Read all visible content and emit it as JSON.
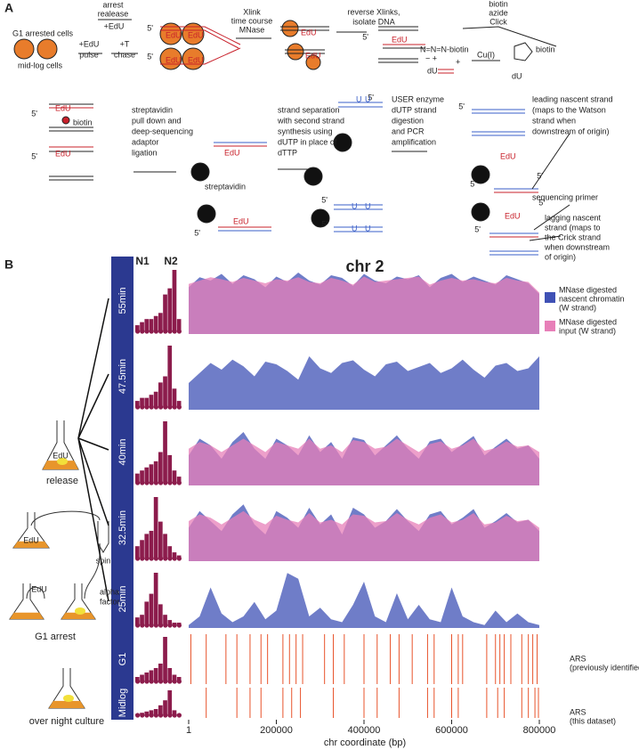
{
  "panel_a": {
    "label": "A",
    "g1_cells": "G1 arrested cells",
    "midlog_cells": "mid-log cells",
    "arrest": [
      "arrest",
      "realease"
    ],
    "edu": "+EdU",
    "pulse": [
      "+EdU",
      "pulse"
    ],
    "chase": [
      "+T",
      "chase"
    ],
    "five": "5'",
    "edu_tag": "EdU",
    "xlink": [
      "Xlink",
      "time course",
      "MNase"
    ],
    "reverse": [
      "reverse Xlinks,",
      "isolate DNA"
    ],
    "click": [
      "biotin",
      "azide",
      "Click"
    ],
    "azide": "N=N=N-biotin",
    "charges": "−  +",
    "du": "dU",
    "plus": "+",
    "cu": "Cu(I)",
    "biotin": "biotin",
    "pulldown": [
      "streptavidin",
      "pull down and",
      "deep-sequencing",
      "adaptor",
      "ligation"
    ],
    "streptavidin": "streptavidin",
    "separation": [
      "strand separation",
      "with second strand",
      "synthesis using",
      "dUTP in place of",
      "dTTP"
    ],
    "u": "U",
    "user": [
      "USER enzyme",
      "dUTP strand",
      "digestion",
      "and PCR",
      "amplification"
    ],
    "leading": [
      "leading nascent strand",
      "(maps to the Watson",
      "strand when",
      "downstream of origin)"
    ],
    "primer": "sequencing primer",
    "lagging": [
      "lagging nascent",
      "strand (maps to",
      "the Crick strand",
      "when downstream",
      " of origin)"
    ]
  },
  "panel_b": {
    "label": "B",
    "title": "chr 2",
    "n1": "N1",
    "n2": "N2",
    "left": {
      "edu": "EdU",
      "release": "release",
      "spin": "spin",
      "alpha": [
        "alpha",
        "factor"
      ],
      "g1_arrest": "G1 arrest",
      "overnight": "over night culture"
    },
    "legend": {
      "nascent": [
        "MNase digested",
        "nascent chromatin",
        "(W strand)"
      ],
      "input": [
        "MNase digested",
        "input (W strand)"
      ],
      "ars_g1": [
        "ARS",
        "(previously identified)"
      ],
      "ars_midlog": [
        "ARS",
        "(this dataset)"
      ]
    },
    "colors": {
      "nascent": "#3f51b5",
      "input": "#e77fb8",
      "ars": "#e8532b",
      "hist": "#8c1c4c",
      "bar": "#2b3990"
    },
    "xlabel": "chr coordinate (bp)",
    "xlim": [
      1,
      800000
    ],
    "xticks": [
      1,
      200000,
      400000,
      600000,
      800000
    ],
    "x": [
      1,
      25000,
      50000,
      75000,
      100000,
      125000,
      150000,
      175000,
      200000,
      225000,
      250000,
      275000,
      300000,
      325000,
      350000,
      375000,
      400000,
      425000,
      450000,
      475000,
      500000,
      525000,
      550000,
      575000,
      600000,
      625000,
      650000,
      675000,
      700000,
      725000,
      750000,
      775000,
      800000
    ],
    "rows": [
      {
        "label": "55min",
        "hist": [
          10,
          15,
          20,
          20,
          25,
          30,
          60,
          70,
          100,
          20
        ],
        "nascent": [
          70,
          85,
          80,
          90,
          75,
          88,
          82,
          70,
          86,
          78,
          92,
          80,
          74,
          88,
          84,
          72,
          90,
          80,
          76,
          86,
          82,
          88,
          70,
          84,
          90,
          78,
          86,
          80,
          74,
          88,
          82,
          76,
          60
        ],
        "input": [
          75,
          80,
          85,
          82,
          78,
          84,
          80,
          76,
          82,
          80,
          85,
          78,
          76,
          84,
          80,
          74,
          86,
          78,
          80,
          82,
          84,
          86,
          74,
          80,
          84,
          80,
          82,
          78,
          76,
          84,
          80,
          78,
          62
        ]
      },
      {
        "label": "47.5min",
        "hist": [
          10,
          15,
          15,
          20,
          25,
          40,
          50,
          100,
          30,
          10
        ],
        "nascent": [
          40,
          55,
          70,
          60,
          75,
          65,
          50,
          72,
          68,
          58,
          45,
          80,
          62,
          55,
          70,
          74,
          60,
          50,
          68,
          72,
          58,
          64,
          70,
          55,
          62,
          75,
          60,
          48,
          66,
          70,
          58,
          62,
          80
        ]
      },
      {
        "label": "40min",
        "hist": [
          15,
          20,
          25,
          30,
          35,
          50,
          100,
          45,
          20,
          10
        ],
        "nascent": [
          45,
          70,
          60,
          40,
          65,
          80,
          55,
          40,
          70,
          60,
          45,
          75,
          50,
          65,
          40,
          72,
          68,
          45,
          60,
          75,
          55,
          40,
          66,
          70,
          50,
          62,
          74,
          45,
          58,
          70,
          55,
          60,
          40
        ],
        "input": [
          55,
          65,
          60,
          50,
          60,
          70,
          60,
          50,
          65,
          60,
          55,
          70,
          55,
          60,
          50,
          68,
          65,
          55,
          58,
          70,
          60,
          50,
          62,
          66,
          55,
          60,
          70,
          52,
          56,
          66,
          58,
          60,
          50
        ]
      },
      {
        "label": "32.5min",
        "hist": [
          20,
          30,
          40,
          45,
          100,
          60,
          40,
          20,
          10,
          5
        ],
        "nascent": [
          50,
          75,
          60,
          45,
          70,
          85,
          55,
          40,
          75,
          65,
          50,
          80,
          55,
          70,
          40,
          80,
          70,
          50,
          60,
          78,
          60,
          45,
          70,
          75,
          55,
          65,
          78,
          50,
          60,
          72,
          58,
          62,
          45
        ],
        "input": [
          60,
          70,
          65,
          55,
          65,
          75,
          62,
          55,
          68,
          62,
          58,
          72,
          58,
          62,
          55,
          70,
          68,
          58,
          60,
          72,
          62,
          55,
          65,
          70,
          58,
          62,
          72,
          55,
          58,
          68,
          60,
          62,
          50
        ]
      },
      {
        "label": "25min",
        "hist": [
          15,
          20,
          45,
          60,
          100,
          40,
          20,
          10,
          5,
          5
        ],
        "nascent": [
          5,
          20,
          70,
          25,
          10,
          20,
          45,
          15,
          30,
          95,
          85,
          20,
          35,
          15,
          10,
          40,
          80,
          20,
          10,
          60,
          15,
          40,
          15,
          10,
          70,
          20,
          10,
          5,
          30,
          10,
          25,
          10,
          5
        ]
      },
      {
        "label": "G1",
        "hist": [
          10,
          15,
          20,
          25,
          30,
          40,
          100,
          30,
          15,
          10
        ],
        "ars": [
          5000,
          40000,
          85000,
          110000,
          140000,
          165000,
          180000,
          215000,
          230000,
          245000,
          260000,
          310000,
          330000,
          355000,
          400000,
          430000,
          460000,
          480000,
          510000,
          545000,
          560000,
          600000,
          615000,
          625000,
          680000,
          700000,
          710000,
          720000,
          735000,
          760000,
          775000,
          785000,
          795000
        ]
      },
      {
        "label": "Midlog",
        "hist": [
          5,
          10,
          15,
          20,
          25,
          40,
          60,
          100,
          20,
          5
        ],
        "ars": [
          40000,
          110000,
          140000,
          165000,
          215000,
          235000,
          255000,
          330000,
          400000,
          430000,
          480000,
          545000,
          560000,
          600000,
          615000,
          680000,
          705000,
          720000,
          760000,
          775000,
          790000,
          798000
        ]
      }
    ]
  }
}
